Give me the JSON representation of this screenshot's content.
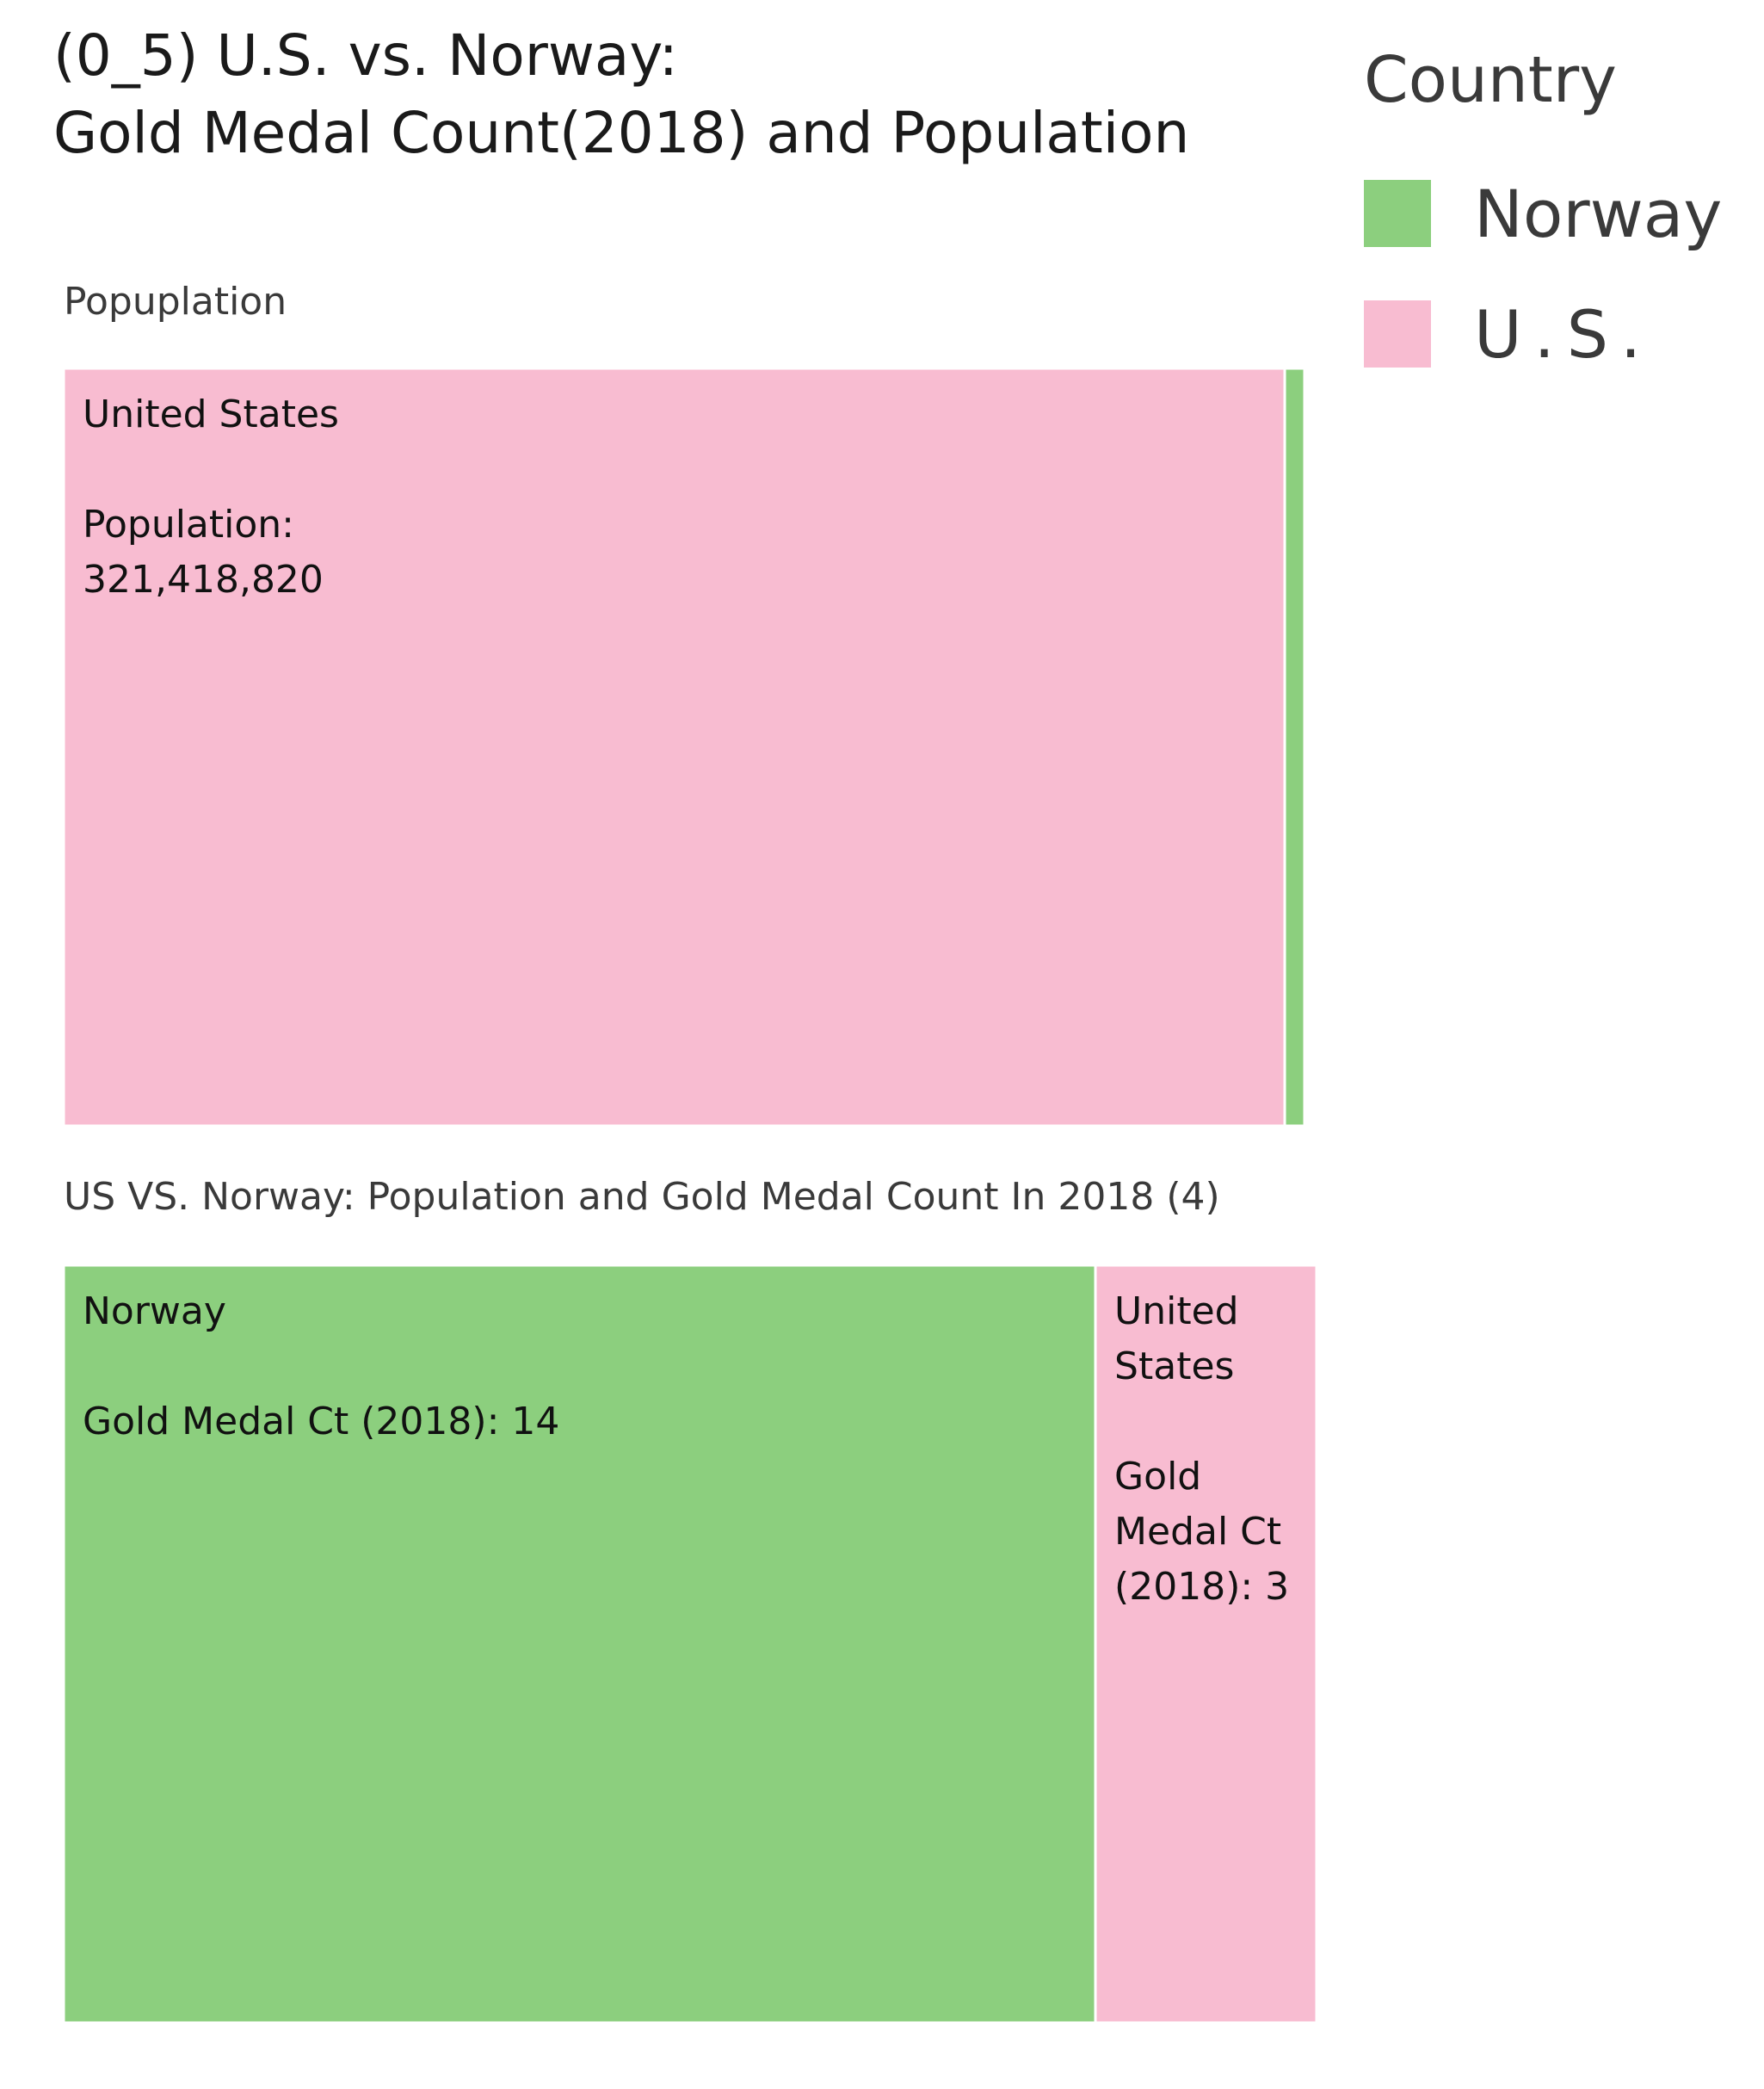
{
  "chart_data": {
    "type": "treemap",
    "title_lines": [
      "(0_5) U.S. vs. Norway:",
      "Gold Medal Count(2018) and Population"
    ],
    "legend": {
      "title": "Country",
      "position": "top-right",
      "items": [
        {
          "label": "Norway",
          "color": "#8ccf7e"
        },
        {
          "label": "U.S.",
          "color": "#f8bcd1"
        }
      ]
    },
    "panels": [
      {
        "label": "Popuplation",
        "measure": "Population",
        "tiles": [
          {
            "country": "U.S.",
            "name": "United States",
            "value": 321418820,
            "label_lines": [
              "United States",
              "",
              "Population:",
              "321,418,820"
            ],
            "color": "#f8bcd1"
          },
          {
            "country": "Norway",
            "name": "Norway",
            "value": 5200000,
            "label_lines": [],
            "color": "#8ccf7e"
          }
        ]
      },
      {
        "label": "US VS. Norway: Population and Gold Medal Count In 2018 (4)",
        "measure": "Gold Medal Ct (2018)",
        "tiles": [
          {
            "country": "Norway",
            "name": "Norway",
            "value": 14,
            "label_lines": [
              "Norway",
              "",
              "Gold Medal Ct (2018): 14"
            ],
            "color": "#8ccf7e"
          },
          {
            "country": "U.S.",
            "name": "United States",
            "value": 3,
            "label_lines": [
              "United",
              "States",
              "",
              "Gold",
              "Medal Ct",
              "(2018): 3"
            ],
            "color": "#f8bcd1"
          }
        ]
      }
    ]
  }
}
